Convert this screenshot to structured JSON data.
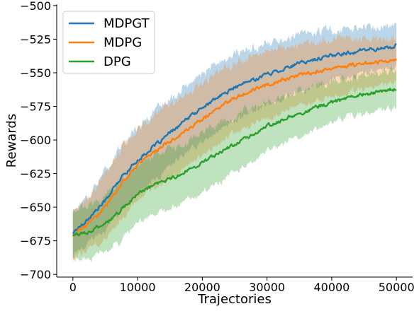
{
  "chart_data": {
    "type": "line",
    "title": "",
    "xlabel": "Trajectories",
    "ylabel": "Rewards",
    "xlim": [
      -2500,
      52500
    ],
    "ylim": [
      -702,
      -499
    ],
    "x_ticks": [
      0,
      10000,
      20000,
      30000,
      40000,
      50000
    ],
    "y_ticks": [
      -500,
      -525,
      -550,
      -575,
      -600,
      -625,
      -650,
      -675,
      -700
    ],
    "legend_position": "top-left",
    "grid": false,
    "x": [
      0,
      2500,
      5000,
      7500,
      10000,
      12500,
      15000,
      17500,
      20000,
      22500,
      25000,
      27500,
      30000,
      32500,
      35000,
      37500,
      40000,
      42500,
      45000,
      47500,
      50000
    ],
    "series": [
      {
        "name": "MDPGT",
        "color": "#1f77b4",
        "values": [
          -669,
          -658,
          -645,
          -628,
          -615,
          -605,
          -595,
          -585,
          -576,
          -568,
          -561,
          -556,
          -551,
          -547,
          -543,
          -540,
          -537,
          -535,
          -533,
          -532,
          -530
        ],
        "band_width": [
          17,
          18,
          22,
          24,
          25,
          25,
          25,
          25,
          25,
          25,
          25,
          24,
          23,
          22,
          21,
          20,
          19,
          18,
          17,
          16,
          15
        ]
      },
      {
        "name": "MDPG",
        "color": "#ff7f0e",
        "values": [
          -671,
          -662,
          -650,
          -632,
          -618,
          -609,
          -601,
          -593,
          -585,
          -576,
          -568,
          -563,
          -559,
          -555,
          -552,
          -549,
          -547,
          -545,
          -543,
          -542,
          -540
        ],
        "band_width": [
          18,
          19,
          24,
          26,
          27,
          27,
          27,
          27,
          27,
          27,
          26,
          25,
          25,
          24,
          23,
          22,
          21,
          20,
          19,
          18,
          17
        ]
      },
      {
        "name": "DPG",
        "color": "#2ca02c",
        "values": [
          -671,
          -668,
          -663,
          -652,
          -640,
          -634,
          -629,
          -623,
          -617,
          -610,
          -603,
          -596,
          -590,
          -585,
          -580,
          -576,
          -572,
          -569,
          -566,
          -564,
          -562
        ],
        "band_width": [
          18,
          19,
          21,
          22,
          22,
          22,
          22,
          22,
          22,
          22,
          21,
          20,
          19,
          18,
          17,
          16,
          15,
          14,
          14,
          14,
          13
        ]
      }
    ]
  }
}
